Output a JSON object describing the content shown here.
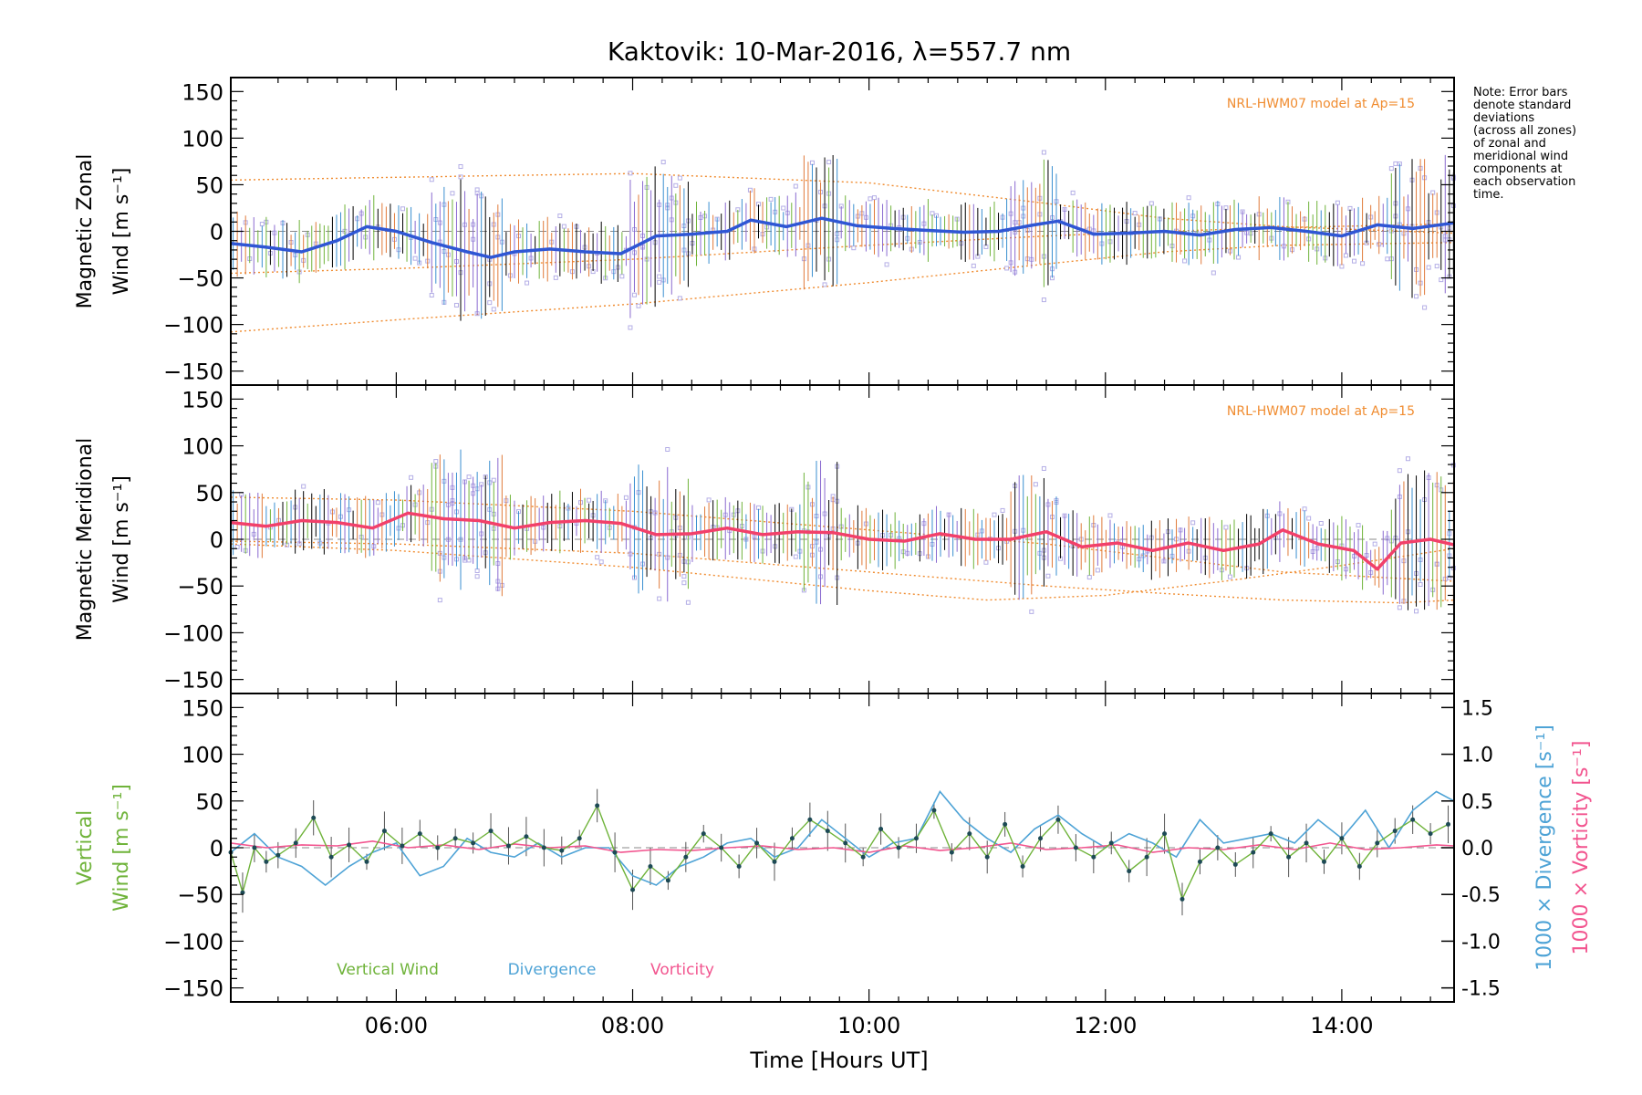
{
  "title": "Kaktovik: 10-Mar-2016, λ=557.7 nm",
  "note_lines": [
    "Note: Error bars",
    "denote standard",
    "deviations",
    "(across all zones)",
    "of zonal and",
    "meridional wind",
    "components at",
    "each observation",
    "time."
  ],
  "colors": {
    "zonal": "#2f56d4",
    "zonal_light": "#5fa8e6",
    "meridional": "#f2406a",
    "points": "#b4aee6",
    "model": "#f08c30",
    "vertical": "#6fb33a",
    "divergence": "#4ea3d6",
    "vorticity": "#f2558f",
    "axis": "#000000"
  },
  "chart_data": [
    {
      "type": "line",
      "panel": "zonal",
      "ylabel_line1": "Magnetic Zonal",
      "ylabel_line2": "Wind [m s⁻¹]",
      "ylim": [
        -165,
        165
      ],
      "yticks": [
        -150,
        -100,
        -50,
        0,
        50,
        100,
        150
      ],
      "model_label": "NRL-HWM07 model at Ap=15",
      "series": [
        {
          "name": "mean_zonal",
          "x": [
            4.6,
            4.9,
            5.2,
            5.5,
            5.75,
            6.0,
            6.3,
            6.6,
            6.8,
            7.0,
            7.3,
            7.6,
            7.9,
            8.2,
            8.5,
            8.8,
            9.0,
            9.3,
            9.6,
            9.9,
            10.2,
            10.5,
            10.8,
            11.1,
            11.4,
            11.6,
            11.9,
            12.2,
            12.5,
            12.8,
            13.1,
            13.4,
            13.7,
            14.0,
            14.3,
            14.6,
            14.95
          ],
          "y": [
            -13,
            -17,
            -22,
            -10,
            5,
            0,
            -12,
            -22,
            -28,
            -22,
            -19,
            -22,
            -24,
            -5,
            -3,
            0,
            12,
            5,
            14,
            6,
            3,
            1,
            -1,
            0,
            7,
            11,
            -3,
            -2,
            0,
            -4,
            2,
            4,
            0,
            -5,
            7,
            3,
            9
          ]
        }
      ],
      "model_curves": [
        {
          "x": [
            4.6,
            6.0,
            8.0,
            10.0,
            11.5,
            12.5,
            13.5,
            14.95
          ],
          "y": [
            55,
            58,
            62,
            52,
            30,
            14,
            5,
            -2
          ]
        },
        {
          "x": [
            4.6,
            6.0,
            8.0,
            10.0,
            11.5,
            12.5,
            13.5,
            14.95
          ],
          "y": [
            -108,
            -95,
            -78,
            -55,
            -35,
            -22,
            -15,
            -12
          ]
        },
        {
          "x": [
            4.6,
            6.0,
            8.0,
            10.0,
            11.5,
            12.5,
            13.5,
            14.95
          ],
          "y": [
            -45,
            -40,
            -30,
            -15,
            -5,
            0,
            4,
            8
          ]
        }
      ]
    },
    {
      "type": "line",
      "panel": "meridional",
      "ylabel_line1": "Magnetic Meridional",
      "ylabel_line2": "Wind [m s⁻¹]",
      "ylim": [
        -165,
        165
      ],
      "yticks": [
        -150,
        -100,
        -50,
        0,
        50,
        100,
        150
      ],
      "model_label": "NRL-HWM07 model at Ap=15",
      "series": [
        {
          "name": "mean_meridional",
          "x": [
            4.6,
            4.9,
            5.2,
            5.5,
            5.8,
            6.1,
            6.4,
            6.7,
            7.0,
            7.3,
            7.6,
            7.9,
            8.2,
            8.5,
            8.8,
            9.1,
            9.4,
            9.7,
            10.0,
            10.3,
            10.6,
            10.9,
            11.2,
            11.5,
            11.8,
            12.1,
            12.4,
            12.7,
            13.0,
            13.3,
            13.5,
            13.8,
            14.1,
            14.3,
            14.5,
            14.75,
            14.95
          ],
          "y": [
            18,
            14,
            20,
            18,
            12,
            28,
            22,
            20,
            12,
            18,
            20,
            17,
            5,
            6,
            12,
            5,
            8,
            7,
            0,
            -2,
            6,
            0,
            0,
            8,
            -8,
            -4,
            -12,
            -4,
            -12,
            -5,
            10,
            -5,
            -12,
            -32,
            -4,
            0,
            -6
          ]
        }
      ],
      "model_curves": [
        {
          "x": [
            4.6,
            6.0,
            8.0,
            10.0,
            11.5,
            12.5,
            13.5,
            14.95
          ],
          "y": [
            45,
            42,
            30,
            10,
            -5,
            -20,
            -35,
            -45
          ]
        },
        {
          "x": [
            4.6,
            6.0,
            8.0,
            10.0,
            11.0,
            12.0,
            13.0,
            14.0,
            14.95
          ],
          "y": [
            -5,
            -12,
            -30,
            -55,
            -65,
            -60,
            -45,
            -28,
            -10
          ]
        },
        {
          "x": [
            4.6,
            6.0,
            8.0,
            10.0,
            11.5,
            12.5,
            13.5,
            14.5,
            14.95
          ],
          "y": [
            -2,
            -5,
            -15,
            -35,
            -50,
            -58,
            -65,
            -68,
            -65
          ]
        }
      ]
    },
    {
      "type": "line",
      "panel": "vertical",
      "ylabel_line1": "Vertical",
      "ylabel_line2": "Wind [m s⁻¹]",
      "ylim": [
        -165,
        165
      ],
      "yticks": [
        -150,
        -100,
        -50,
        0,
        50,
        100,
        150
      ],
      "y2ticks": [
        -1.5,
        -1.0,
        -0.5,
        0.0,
        0.5,
        1.0,
        1.5
      ],
      "y2lim": [
        -1.65,
        1.65
      ],
      "y2label_divergence": "1000 × Divergence [s⁻¹]",
      "y2label_vorticity": "1000 × Vorticity [s⁻¹]",
      "legend": [
        "Vertical Wind",
        "Divergence",
        "Vorticity"
      ],
      "series": [
        {
          "name": "vertical_wind",
          "x": [
            4.6,
            4.7,
            4.8,
            4.9,
            5.0,
            5.15,
            5.3,
            5.45,
            5.6,
            5.75,
            5.9,
            6.05,
            6.2,
            6.35,
            6.5,
            6.65,
            6.8,
            6.95,
            7.1,
            7.25,
            7.4,
            7.55,
            7.7,
            7.85,
            8.0,
            8.15,
            8.3,
            8.45,
            8.6,
            8.75,
            8.9,
            9.05,
            9.2,
            9.35,
            9.5,
            9.65,
            9.8,
            9.95,
            10.1,
            10.25,
            10.4,
            10.55,
            10.7,
            10.85,
            11.0,
            11.15,
            11.3,
            11.45,
            11.6,
            11.75,
            11.9,
            12.05,
            12.2,
            12.35,
            12.5,
            12.65,
            12.8,
            12.95,
            13.1,
            13.25,
            13.4,
            13.55,
            13.7,
            13.85,
            14.0,
            14.15,
            14.3,
            14.45,
            14.6,
            14.75,
            14.9
          ],
          "y": [
            -5,
            -48,
            0,
            -15,
            -8,
            5,
            32,
            -10,
            3,
            -15,
            18,
            2,
            15,
            0,
            10,
            5,
            18,
            2,
            12,
            0,
            -3,
            10,
            45,
            -5,
            -45,
            -20,
            -35,
            -10,
            15,
            0,
            -20,
            5,
            -15,
            10,
            30,
            18,
            5,
            -10,
            20,
            0,
            10,
            40,
            -5,
            15,
            -10,
            25,
            -20,
            10,
            30,
            0,
            -10,
            5,
            -25,
            -10,
            15,
            -55,
            -15,
            0,
            -18,
            -5,
            15,
            -10,
            5,
            -15,
            10,
            -20,
            5,
            18,
            30,
            15,
            25
          ]
        },
        {
          "name": "divergence",
          "x": [
            4.6,
            4.8,
            5.0,
            5.2,
            5.4,
            5.6,
            5.8,
            6.0,
            6.2,
            6.4,
            6.6,
            6.8,
            7.0,
            7.2,
            7.4,
            7.6,
            7.8,
            8.0,
            8.2,
            8.4,
            8.6,
            8.8,
            9.0,
            9.2,
            9.4,
            9.6,
            9.8,
            10.0,
            10.2,
            10.4,
            10.6,
            10.8,
            11.0,
            11.2,
            11.4,
            11.6,
            11.8,
            12.0,
            12.2,
            12.4,
            12.6,
            12.8,
            13.0,
            13.2,
            13.4,
            13.6,
            13.8,
            14.0,
            14.2,
            14.4,
            14.6,
            14.8,
            14.95
          ],
          "y": [
            -0.05,
            0.15,
            -0.1,
            -0.2,
            -0.4,
            -0.2,
            -0.05,
            0.05,
            -0.3,
            -0.2,
            0.1,
            -0.05,
            -0.1,
            0.05,
            -0.1,
            0.0,
            0.0,
            -0.3,
            -0.4,
            -0.2,
            -0.1,
            0.05,
            0.1,
            -0.1,
            0.0,
            0.3,
            0.1,
            -0.1,
            0.05,
            0.1,
            0.6,
            0.3,
            0.1,
            -0.05,
            0.2,
            0.35,
            0.15,
            0.0,
            0.15,
            0.05,
            -0.1,
            0.3,
            0.05,
            0.1,
            0.15,
            0.05,
            0.3,
            0.1,
            0.4,
            0.0,
            0.4,
            0.6,
            0.5
          ]
        },
        {
          "name": "vorticity",
          "x": [
            4.6,
            4.9,
            5.2,
            5.5,
            5.8,
            6.1,
            6.4,
            6.7,
            7.0,
            7.3,
            7.6,
            7.9,
            8.2,
            8.5,
            8.8,
            9.1,
            9.4,
            9.7,
            10.0,
            10.3,
            10.6,
            10.9,
            11.2,
            11.5,
            11.8,
            12.1,
            12.4,
            12.7,
            13.0,
            13.3,
            13.6,
            13.9,
            14.2,
            14.5,
            14.8,
            14.95
          ],
          "y": [
            0.05,
            0.0,
            0.03,
            0.02,
            0.07,
            0.0,
            0.03,
            -0.02,
            0.04,
            0.0,
            0.02,
            -0.05,
            -0.02,
            -0.03,
            0.0,
            0.02,
            -0.02,
            0.0,
            -0.05,
            0.02,
            -0.03,
            0.0,
            0.05,
            -0.02,
            0.0,
            0.03,
            -0.05,
            0.0,
            -0.02,
            0.03,
            -0.02,
            0.05,
            -0.02,
            0.0,
            0.03,
            0.02
          ]
        }
      ]
    }
  ],
  "x_axis": {
    "label": "Time [Hours UT]",
    "xlim": [
      4.6,
      14.95
    ],
    "ticks": [
      6,
      8,
      10,
      12,
      14
    ],
    "tick_labels": [
      "06:00",
      "08:00",
      "10:00",
      "12:00",
      "14:00"
    ]
  }
}
